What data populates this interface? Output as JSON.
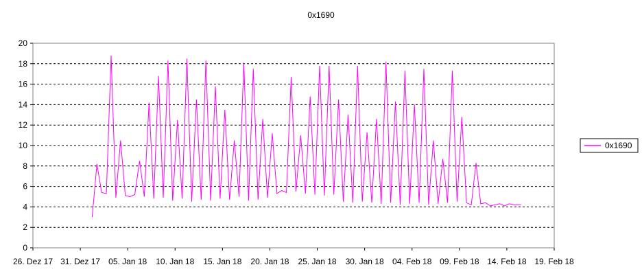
{
  "chart_data": {
    "type": "line",
    "title": "0x1690",
    "xlabel": "",
    "ylabel": "",
    "ylim": [
      0,
      20
    ],
    "yticks": [
      "0",
      "2",
      "4",
      "6",
      "8",
      "10",
      "12",
      "14",
      "16",
      "18",
      "20"
    ],
    "xlim": [
      "2017-12-26",
      "2018-02-19"
    ],
    "xticks": [
      "26. Dez 17",
      "31. Dez 17",
      "05. Jan 18",
      "10. Jan 18",
      "15. Jan 18",
      "20. Jan 18",
      "25. Jan 18",
      "30. Jan 18",
      "04. Feb 18",
      "09. Feb 18",
      "14. Feb 18",
      "19. Feb 18"
    ],
    "grid": "horizontal dashed",
    "legend_position": "right",
    "series": [
      {
        "name": "0x1690",
        "color": "#ff00ff",
        "x": [
          "2018-01-01",
          "2018-01-01",
          "2018-01-02",
          "2018-01-02",
          "2018-01-03",
          "2018-01-03",
          "2018-01-04",
          "2018-01-04",
          "2018-01-05",
          "2018-01-05",
          "2018-01-06",
          "2018-01-06",
          "2018-01-07",
          "2018-01-07",
          "2018-01-08",
          "2018-01-08",
          "2018-01-09",
          "2018-01-09",
          "2018-01-10",
          "2018-01-10",
          "2018-01-11",
          "2018-01-11",
          "2018-01-12",
          "2018-01-12",
          "2018-01-13",
          "2018-01-13",
          "2018-01-14",
          "2018-01-14",
          "2018-01-15",
          "2018-01-15",
          "2018-01-16",
          "2018-01-16",
          "2018-01-17",
          "2018-01-17",
          "2018-01-18",
          "2018-01-18",
          "2018-01-19",
          "2018-01-19",
          "2018-01-20",
          "2018-01-20",
          "2018-01-21",
          "2018-01-21",
          "2018-01-22",
          "2018-01-22",
          "2018-01-23",
          "2018-01-23",
          "2018-01-24",
          "2018-01-24",
          "2018-01-25",
          "2018-01-25",
          "2018-01-26",
          "2018-01-26",
          "2018-01-27",
          "2018-01-27",
          "2018-01-28",
          "2018-01-28",
          "2018-01-29",
          "2018-01-29",
          "2018-01-30",
          "2018-01-30",
          "2018-01-31",
          "2018-01-31",
          "2018-02-01",
          "2018-02-01",
          "2018-02-02",
          "2018-02-02",
          "2018-02-03",
          "2018-02-03",
          "2018-02-04",
          "2018-02-04",
          "2018-02-05",
          "2018-02-05",
          "2018-02-06",
          "2018-02-06",
          "2018-02-07",
          "2018-02-07",
          "2018-02-08",
          "2018-02-08",
          "2018-02-09",
          "2018-02-09",
          "2018-02-10",
          "2018-02-10",
          "2018-02-11",
          "2018-02-11",
          "2018-02-12",
          "2018-02-12",
          "2018-02-13",
          "2018-02-13",
          "2018-02-14",
          "2018-02-14",
          "2018-02-15"
        ],
        "values": [
          3.0,
          8.2,
          5.4,
          5.3,
          18.8,
          4.9,
          10.5,
          5.1,
          5.0,
          5.2,
          8.5,
          5.0,
          14.2,
          4.8,
          16.8,
          4.9,
          18.3,
          4.6,
          12.5,
          4.8,
          18.5,
          4.5,
          14.5,
          4.7,
          18.3,
          4.6,
          15.8,
          4.8,
          13.5,
          4.7,
          10.5,
          5.0,
          18.1,
          4.6,
          17.5,
          4.7,
          12.6,
          4.9,
          11.2,
          5.3,
          5.6,
          5.4,
          16.7,
          5.5,
          11.0,
          5.3,
          14.8,
          5.2,
          17.8,
          5.1,
          17.8,
          5.2,
          14.5,
          4.5,
          13.0,
          4.4,
          17.8,
          4.5,
          11.3,
          4.4,
          12.6,
          4.3,
          18.2,
          4.4,
          14.3,
          4.2,
          17.3,
          4.3,
          14.0,
          4.4,
          17.5,
          4.2,
          10.5,
          4.3,
          8.7,
          4.4,
          17.3,
          4.5,
          12.8,
          4.4,
          4.2,
          8.3,
          4.3,
          4.4,
          4.1,
          4.2,
          4.3,
          4.1,
          4.3,
          4.2,
          4.2
        ]
      }
    ]
  }
}
